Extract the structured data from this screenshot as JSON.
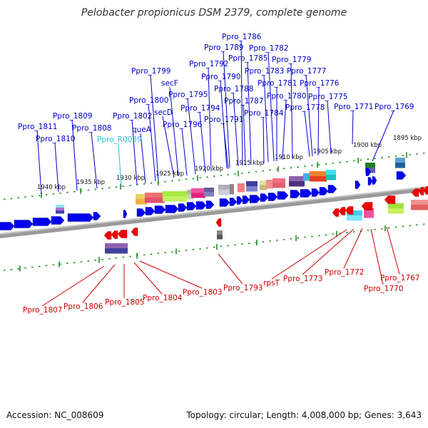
{
  "title": "Pelobacter propionicus DSM 2379, complete genome",
  "footer": {
    "accession": "Accession: NC_008609",
    "summary": "Topology: circular; Length: 4,008,000 bp; Genes: 3,643"
  },
  "colors": {
    "forward_label": "#0000cc",
    "reverse_label": "#cc0000",
    "rna_label": "#33bbdd",
    "forward_gene": "#0000ee",
    "reverse_gene": "#ee0000",
    "tick": "#228822",
    "backbone": "#999999"
  },
  "kbp_marks": [
    "1940 kbp",
    "1935 kbp",
    "1930 kbp",
    "1925 kbp",
    "1920 kbp",
    "1915 kbp",
    "1910 kbp",
    "1905 kbp",
    "1900 kbp",
    "1895 kbp"
  ],
  "forward_labels": [
    "Ppro_1811",
    "Ppro_1810",
    "Ppro_1809",
    "Ppro_1808",
    "Ppro_R0039",
    "Ppro_1802",
    "queA",
    "Ppro_1800",
    "Ppro_1799",
    "secD",
    "secF",
    "Ppro_1796",
    "Ppro_1795",
    "Ppro_1794",
    "Ppro_1792",
    "Ppro_1791",
    "Ppro_1790",
    "Ppro_1789",
    "Ppro_1788",
    "Ppro_1787",
    "Ppro_1786",
    "Ppro_1785",
    "Ppro_1784",
    "Ppro_1783",
    "Ppro_1782",
    "Ppro_1781",
    "Ppro_1780",
    "Ppro_1779",
    "Ppro_1778",
    "Ppro_1777",
    "Ppro_1776",
    "Ppro_1775",
    "Ppro_1771",
    "Ppro_1769"
  ],
  "reverse_labels": [
    "Ppro_1807",
    "Ppro_1806",
    "Ppro_1805",
    "Ppro_1804",
    "Ppro_1803",
    "Ppro_1793",
    "rpsT",
    "Ppro_1773",
    "Ppro_1772",
    "Ppro_1770",
    "Ppro_1767"
  ]
}
